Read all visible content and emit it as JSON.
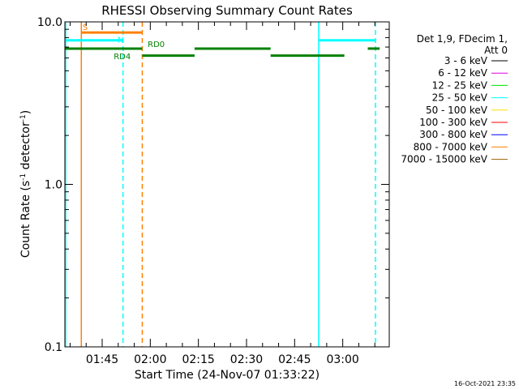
{
  "chart_data": {
    "type": "line",
    "title": "RHESSI Observing Summary Count Rates",
    "xlabel": "Start Time (24-Nov-07 01:33:22)",
    "ylabel_parts": [
      "Count Rate (s",
      "-1",
      " detector",
      "-1",
      ")"
    ],
    "y_scale": "log",
    "ylim": [
      0.1,
      10.0
    ],
    "yticks": [
      {
        "value": 10.0,
        "label": "10.0"
      },
      {
        "value": 1.0,
        "label": "1.0"
      },
      {
        "value": 0.1,
        "label": "0.1"
      }
    ],
    "xlim_min": [
      93.37,
      194.5
    ],
    "xticks": [
      {
        "min": 105,
        "label": "01:45"
      },
      {
        "min": 120,
        "label": "02:00"
      },
      {
        "min": 135,
        "label": "02:15"
      },
      {
        "min": 150,
        "label": "02:30"
      },
      {
        "min": 165,
        "label": "02:45"
      },
      {
        "min": 180,
        "label": "03:00"
      }
    ],
    "legend": {
      "header": [
        "Det 1,9, FDecim 1,",
        "Att 0"
      ],
      "entries": [
        {
          "label": "3 - 6 keV",
          "color": "#000000"
        },
        {
          "label": "6 - 12 keV",
          "color": "#e000e0"
        },
        {
          "label": "12 - 25 keV",
          "color": "#00e000"
        },
        {
          "label": "25 - 50 keV",
          "color": "#00ffff"
        },
        {
          "label": "50 - 100 keV",
          "color": "#ffe000"
        },
        {
          "label": "100 - 300 keV",
          "color": "#ff0000"
        },
        {
          "label": "300 - 800 keV",
          "color": "#0000ff"
        },
        {
          "label": "800 - 7000 keV",
          "color": "#ff8000"
        },
        {
          "label": "7000 - 15000 keV",
          "color": "#a06000"
        }
      ],
      "placement": "right"
    },
    "flag_segments": [
      {
        "name": "S",
        "color": "#ff8000",
        "y": 8.6,
        "x0": 98.5,
        "x1": 117.5
      },
      {
        "name": "N",
        "color": "#00ffff",
        "y": 7.7,
        "x0": 93.37,
        "x1": 111.5
      },
      {
        "name": "N",
        "color": "#00ffff",
        "y": 7.7,
        "x0": 172.5,
        "x1": 190.2
      },
      {
        "name": "RD4",
        "color": "#008000",
        "y": 6.85,
        "x0": 93.37,
        "x1": 117.5
      },
      {
        "name": "RD0",
        "color": "#008000",
        "y": 6.2,
        "x0": 117.5,
        "x1": 133.8
      },
      {
        "name": "RD",
        "color": "#008000",
        "y": 6.85,
        "x0": 133.8,
        "x1": 157.5
      },
      {
        "name": "RD",
        "color": "#008000",
        "y": 6.2,
        "x0": 157.5,
        "x1": 180.5
      },
      {
        "name": "RD",
        "color": "#008000",
        "y": 6.85,
        "x0": 187.8,
        "x1": 191.5
      }
    ],
    "flag_labels": [
      {
        "text": "S",
        "color": "#ff8000",
        "x": 98.9,
        "y": 8.9
      },
      {
        "text": "N",
        "color": "#00ffff",
        "x": 109.8,
        "y": 7.45
      },
      {
        "text": "RD0",
        "color": "#008000",
        "x": 119.2,
        "y": 7.0
      },
      {
        "text": "RD4",
        "color": "#008000",
        "x": 108.6,
        "y": 5.9
      }
    ],
    "vlines": [
      {
        "x": 93.6,
        "color": "#00ffff",
        "style": "solid"
      },
      {
        "x": 98.5,
        "color": "#ff8000",
        "style": "solid"
      },
      {
        "x": 111.5,
        "color": "#00ffff",
        "style": "dashed"
      },
      {
        "x": 117.5,
        "color": "#ff8000",
        "style": "dashed"
      },
      {
        "x": 172.5,
        "color": "#00ffff",
        "style": "solid"
      },
      {
        "x": 190.2,
        "color": "#00ffff",
        "style": "dashed"
      }
    ],
    "footer_date": "16-Oct-2021 23:35"
  }
}
